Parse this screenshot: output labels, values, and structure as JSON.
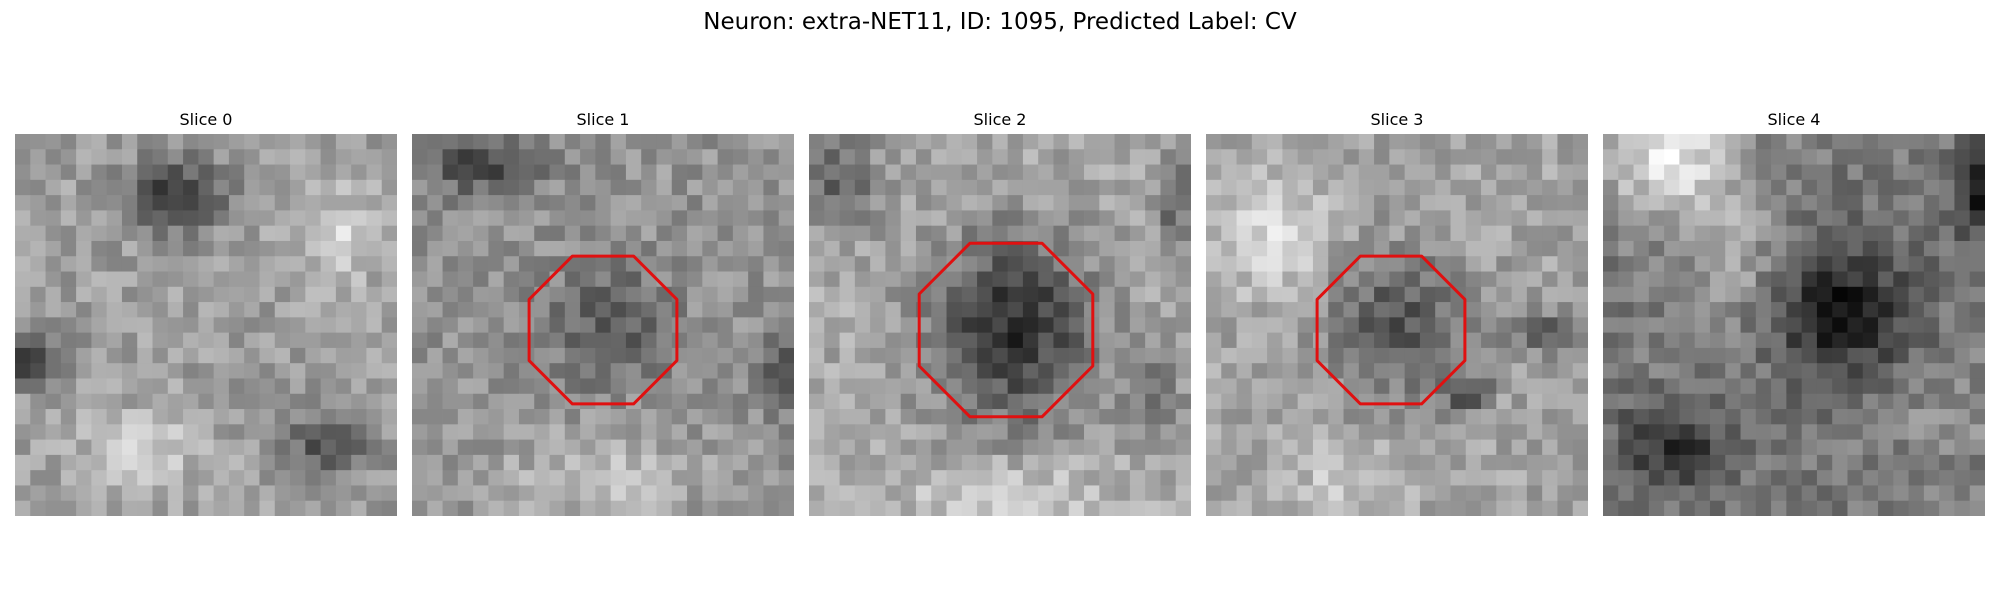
{
  "figure": {
    "title": "Neuron: extra-NET11, ID: 1095, Predicted Label: CV"
  },
  "slices": [
    {
      "label": "Slice 0",
      "roi": false,
      "seed": 11,
      "pattern": "slice0"
    },
    {
      "label": "Slice 1",
      "roi": true,
      "seed": 23,
      "pattern": "slice1"
    },
    {
      "label": "Slice 2",
      "roi": true,
      "seed": 37,
      "pattern": "slice2"
    },
    {
      "label": "Slice 3",
      "roi": true,
      "seed": 53,
      "pattern": "slice3"
    },
    {
      "label": "Slice 4",
      "roi": false,
      "seed": 71,
      "pattern": "slice4"
    }
  ],
  "colors": {
    "roi_outline": "#e01010",
    "background": "#ffffff"
  }
}
